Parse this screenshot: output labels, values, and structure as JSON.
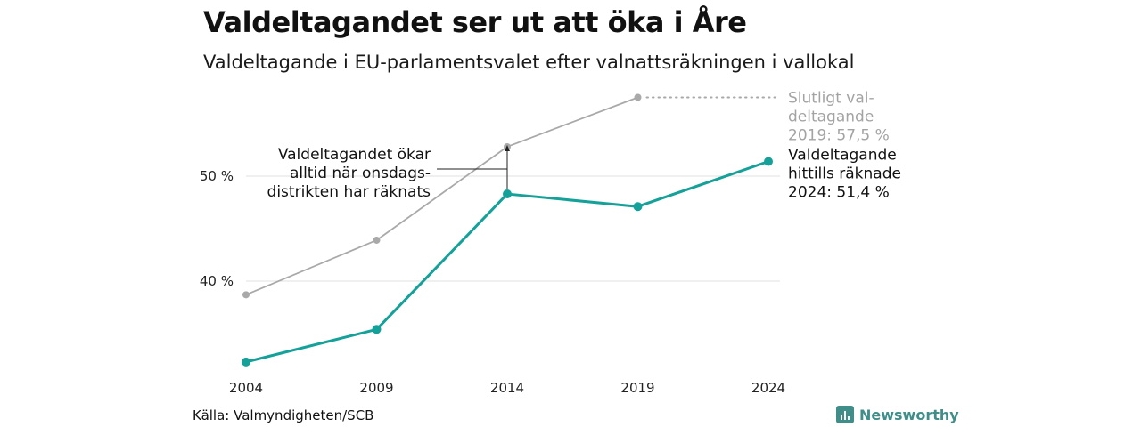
{
  "title": "Valdeltagandet ser ut att öka i Åre",
  "subtitle": "Valdeltagande i EU-parlamentsvalet efter valnattsräkningen i vallokal",
  "source": "Källa: Valmyndigheten/SCB",
  "brand": "Newsworthy",
  "colors": {
    "accent": "#14a199",
    "final": "#a9a9a9",
    "grid": "#e6e6e6"
  },
  "chart_data": {
    "type": "line",
    "x": [
      "2004",
      "2009",
      "2014",
      "2019",
      "2024"
    ],
    "y_ticks": [
      40,
      50
    ],
    "y_tick_labels": [
      "40 %",
      "50 %"
    ],
    "ylim": [
      30.5,
      58.5
    ],
    "series": [
      {
        "name": "Slutligt valdeltagande",
        "values": [
          38.7,
          43.9,
          52.8,
          57.5,
          null
        ]
      },
      {
        "name": "Valdeltagande hittills räknade",
        "values": [
          32.3,
          35.4,
          48.3,
          47.1,
          51.4
        ]
      }
    ],
    "annotations": {
      "final_label": [
        "Slutligt val-",
        "deltagande",
        "2019: 57,5 %"
      ],
      "counted_label": [
        "Valdeltagande",
        "hittills räknade",
        "2024: 51,4 %"
      ],
      "note": [
        "Valdeltagandet ökar",
        "alltid när onsdags-",
        "distrikten har räknats"
      ]
    }
  }
}
